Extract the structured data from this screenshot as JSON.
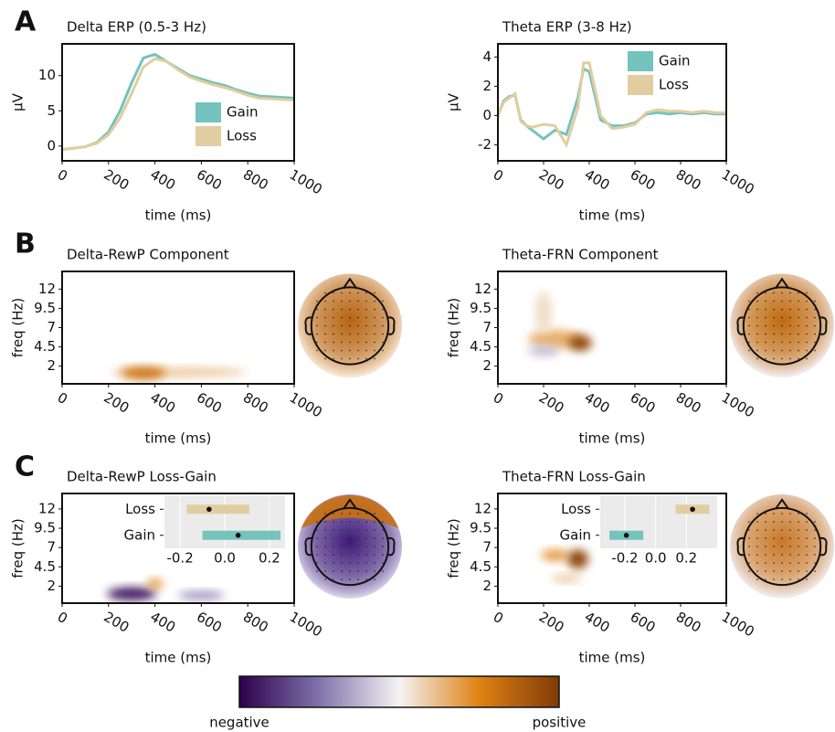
{
  "panel_labels": [
    "A",
    "B",
    "C"
  ],
  "colorbar": {
    "low_label": "negative",
    "high_label": "positive"
  },
  "chart_data": [
    {
      "type": "line",
      "title": "Delta ERP (0.5-3 Hz)",
      "xlabel": "time (ms)",
      "ylabel": "μV",
      "x": [
        0,
        50,
        100,
        150,
        200,
        250,
        300,
        350,
        400,
        450,
        500,
        550,
        600,
        650,
        700,
        750,
        800,
        850,
        900,
        950,
        1000
      ],
      "series": [
        {
          "name": "Gain",
          "color": "#74c3bd",
          "values": [
            -0.5,
            -0.3,
            -0.1,
            0.5,
            2,
            5,
            9,
            12.5,
            13,
            12,
            11,
            10,
            9.5,
            9,
            8.6,
            8,
            7.5,
            7.1,
            7,
            6.9,
            6.8
          ]
        },
        {
          "name": "Loss",
          "color": "#e2cda0",
          "values": [
            -0.5,
            -0.3,
            -0.1,
            0.4,
            1.6,
            4,
            7.5,
            11.2,
            12.4,
            12,
            10.8,
            9.8,
            9.2,
            8.7,
            8.3,
            7.8,
            7.2,
            6.8,
            6.7,
            6.6,
            6.5
          ]
        }
      ],
      "xlim": [
        0,
        1000
      ],
      "xticks": [
        0,
        200,
        400,
        600,
        800,
        1000
      ],
      "ylim": [
        -2.1,
        14.5
      ],
      "yticks": [
        0,
        5,
        10
      ],
      "legend": "lower right"
    },
    {
      "type": "line",
      "title": "Theta ERP (3-8 Hz)",
      "xlabel": "time (ms)",
      "ylabel": "μV",
      "x": [
        0,
        25,
        50,
        75,
        100,
        125,
        150,
        200,
        250,
        300,
        350,
        375,
        400,
        450,
        500,
        550,
        600,
        650,
        700,
        750,
        800,
        850,
        900,
        950,
        1000
      ],
      "series": [
        {
          "name": "Gain",
          "color": "#74c3bd",
          "values": [
            0,
            1,
            1.3,
            1.4,
            -0.3,
            -0.7,
            -1,
            -1.6,
            -1,
            -1.3,
            1.2,
            3.2,
            3,
            -0.3,
            -0.7,
            -0.7,
            -0.5,
            0.1,
            0.2,
            0.1,
            0.2,
            0.1,
            0.2,
            0.1,
            0.1
          ]
        },
        {
          "name": "Loss",
          "color": "#e2cda0",
          "values": [
            0,
            0.9,
            1.2,
            1.5,
            -0.4,
            -0.7,
            -0.8,
            -0.6,
            -0.7,
            -2,
            0.5,
            3.6,
            3.6,
            0,
            -0.9,
            -0.8,
            -0.6,
            0.2,
            0.4,
            0.3,
            0.3,
            0.2,
            0.3,
            0.2,
            0.2
          ]
        }
      ],
      "xlim": [
        0,
        1000
      ],
      "xticks": [
        0,
        200,
        400,
        600,
        800,
        1000
      ],
      "ylim": [
        -3.1,
        4.9
      ],
      "yticks": [
        -2,
        0,
        2,
        4
      ],
      "legend": "upper right"
    },
    {
      "type": "heatmap",
      "title": "Delta-RewP Component",
      "xlabel": "time (ms)",
      "ylabel": "freq (Hz)",
      "xlim": [
        0,
        1000
      ],
      "xticks": [
        0,
        200,
        400,
        600,
        800,
        1000
      ],
      "ylim": [
        -0.3,
        14.3
      ],
      "yticks": [
        2,
        4.5,
        7,
        9.5,
        12
      ],
      "blobs": [
        {
          "time": 500,
          "freq": 1.2,
          "time_width": 560,
          "freq_width": 0.7,
          "value": 0.2
        },
        {
          "time": 350,
          "freq": 1.1,
          "time_width": 160,
          "freq_width": 1.1,
          "value": 0.6
        }
      ],
      "topomap": {
        "center": "#b8640f",
        "edge": "#fbeee0"
      }
    },
    {
      "type": "heatmap",
      "title": "Theta-FRN Component",
      "xlabel": "time (ms)",
      "ylabel": "freq (Hz)",
      "xlim": [
        0,
        1000
      ],
      "xticks": [
        0,
        200,
        400,
        600,
        800,
        1000
      ],
      "ylim": [
        -0.3,
        14.3
      ],
      "yticks": [
        2,
        4.5,
        7,
        9.5,
        12
      ],
      "blobs": [
        {
          "time": 250,
          "freq": 5.5,
          "time_width": 200,
          "freq_width": 2,
          "value": 0.3
        },
        {
          "time": 200,
          "freq": 9,
          "time_width": 40,
          "freq_width": 5,
          "value": 0.1
        },
        {
          "time": 200,
          "freq": 4,
          "time_width": 100,
          "freq_width": 1,
          "value": -0.2
        },
        {
          "time": 360,
          "freq": 5,
          "time_width": 70,
          "freq_width": 1.6,
          "value": 0.9
        }
      ],
      "topomap": {
        "center": "#c06a10",
        "edge": "#f4f4fa"
      }
    },
    {
      "type": "heatmap",
      "title": "Delta-RewP Loss-Gain",
      "xlabel": "time (ms)",
      "ylabel": "freq (Hz)",
      "xlim": [
        0,
        1000
      ],
      "xticks": [
        0,
        200,
        400,
        600,
        800,
        1000
      ],
      "ylim": [
        -0.2,
        14
      ],
      "yticks": [
        2,
        4.5,
        7,
        9.5,
        12
      ],
      "blobs": [
        {
          "time": 600,
          "freq": 0.8,
          "time_width": 170,
          "freq_width": 0.6,
          "value": -0.4
        },
        {
          "time": 300,
          "freq": 1,
          "time_width": 180,
          "freq_width": 1.2,
          "value": -0.9
        },
        {
          "time": 400,
          "freq": 2.3,
          "time_width": 40,
          "freq_width": 0.8,
          "value": 0.4
        }
      ],
      "topomap": {
        "center": "#3d1a78",
        "edge": "#dcd8ec",
        "top": "#c87012"
      },
      "inset": {
        "categories": [
          "Loss",
          "Gain"
        ],
        "values": [
          -0.07,
          0.06
        ],
        "ci": [
          [
            -0.17,
            0.11
          ],
          [
            -0.1,
            0.25
          ]
        ],
        "colors": [
          "#e2cda0",
          "#74c3bd"
        ],
        "xlim": [
          -0.27,
          0.27
        ],
        "xticks": [
          -0.2,
          {
            "value": 0,
            "label": "0.0"
          },
          0.2
        ]
      }
    },
    {
      "type": "heatmap",
      "title": "Theta-FRN Loss-Gain",
      "xlabel": "time (ms)",
      "ylabel": "freq (Hz)",
      "xlim": [
        0,
        1000
      ],
      "xticks": [
        0,
        200,
        400,
        600,
        800,
        1000
      ],
      "ylim": [
        -0.2,
        14
      ],
      "yticks": [
        2,
        4.5,
        7,
        9.5,
        12
      ],
      "blobs": [
        {
          "time": 250,
          "freq": 6,
          "time_width": 90,
          "freq_width": 1,
          "value": 0.4
        },
        {
          "time": 300,
          "freq": 3,
          "time_width": 100,
          "freq_width": 0.5,
          "value": 0.2
        },
        {
          "time": 350,
          "freq": 5.5,
          "time_width": 60,
          "freq_width": 2,
          "value": 0.9
        }
      ],
      "topomap": {
        "center": "#c8782a",
        "edge": "#f2f2f8"
      },
      "inset": {
        "categories": [
          "Loss",
          "Gain"
        ],
        "values": [
          0.24,
          -0.19
        ],
        "ci": [
          [
            0.13,
            0.35
          ],
          [
            -0.3,
            -0.08
          ]
        ],
        "colors": [
          "#e2cda0",
          "#74c3bd"
        ],
        "xlim": [
          -0.36,
          0.4
        ],
        "xticks": [
          -0.2,
          {
            "value": 0,
            "label": "0.0"
          },
          0.2
        ]
      }
    }
  ]
}
